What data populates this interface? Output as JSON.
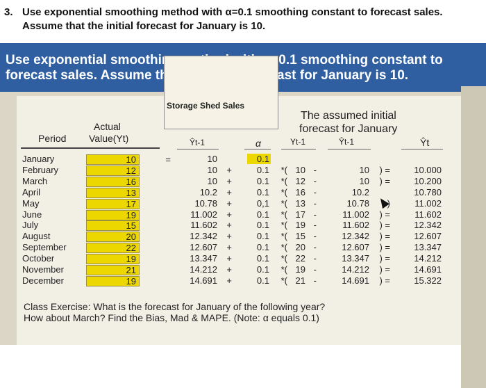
{
  "question": {
    "number": "3.",
    "text": "Use exponential smoothing method with α=0.1 smoothing constant to forecast sales. Assume that the initial forecast for January is 10."
  },
  "banner": {
    "text": "Use exponential smoothing method with α=0.1 smoothing constant to forecast sales. Assume that the initial forecast for January is 10."
  },
  "table": {
    "box_title": "Storage Shed Sales",
    "note_line1": "The assumed initial",
    "note_line2": "forecast for January",
    "header_period": "Period",
    "header_actual1": "Actual",
    "header_actual2": "Value(Yt)",
    "header_fprev": "Ŷt-1",
    "header_alpha": "α",
    "header_yprev": "Yt-1",
    "header_fprev2": "Ŷt-1",
    "header_forecast": "Ŷt",
    "rows": [
      {
        "month": "January",
        "y": "10",
        "f1": "10",
        "op1": "",
        "a": "0.1",
        "op2": "",
        "yp": "",
        "op3": "",
        "fp": "",
        "eq": "",
        "ft": ""
      },
      {
        "month": "February",
        "y": "12",
        "f1": "10",
        "op1": "+",
        "a": "0.1",
        "op2": "*(",
        "yp": "10",
        "op3": "-",
        "fp": "10",
        "eq": ") =",
        "ft": "10.000"
      },
      {
        "month": "March",
        "y": "16",
        "f1": "10",
        "op1": "+",
        "a": "0.1",
        "op2": "*(",
        "yp": "12",
        "op3": "-",
        "fp": "10",
        "eq": ") =",
        "ft": "10.200"
      },
      {
        "month": "April",
        "y": "13",
        "f1": "10.2",
        "op1": "+",
        "a": "0.1",
        "op2": "*(",
        "yp": "16",
        "op3": "-",
        "fp": "10.2",
        "eq": "",
        "ft": "10.780"
      },
      {
        "month": "May",
        "y": "17",
        "f1": "10.78",
        "op1": "+",
        "a": "0,1",
        "op2": "*(",
        "yp": "13",
        "op3": "-",
        "fp": "10.78",
        "eq": ")",
        "ft": "11.002"
      },
      {
        "month": "June",
        "y": "19",
        "f1": "11.002",
        "op1": "+",
        "a": "0.1",
        "op2": "*(",
        "yp": "17",
        "op3": "-",
        "fp": "11.002",
        "eq": ") =",
        "ft": "11.602"
      },
      {
        "month": "July",
        "y": "15",
        "f1": "11.602",
        "op1": "+",
        "a": "0.1",
        "op2": "*(",
        "yp": "19",
        "op3": "-",
        "fp": "11.602",
        "eq": ") =",
        "ft": "12.342"
      },
      {
        "month": "August",
        "y": "20",
        "f1": "12.342",
        "op1": "+",
        "a": "0.1",
        "op2": "*(",
        "yp": "15",
        "op3": "-",
        "fp": "12.342",
        "eq": ") =",
        "ft": "12.607"
      },
      {
        "month": "September",
        "y": "22",
        "f1": "12.607",
        "op1": "+",
        "a": "0.1",
        "op2": "*(",
        "yp": "20",
        "op3": "-",
        "fp": "12.607",
        "eq": ") =",
        "ft": "13.347"
      },
      {
        "month": "October",
        "y": "19",
        "f1": "13.347",
        "op1": "+",
        "a": "0.1",
        "op2": "*(",
        "yp": "22",
        "op3": "-",
        "fp": "13.347",
        "eq": ") =",
        "ft": "14.212"
      },
      {
        "month": "November",
        "y": "21",
        "f1": "14.212",
        "op1": "+",
        "a": "0.1",
        "op2": "*(",
        "yp": "19",
        "op3": "-",
        "fp": "14.212",
        "eq": ") =",
        "ft": "14.691"
      },
      {
        "month": "December",
        "y": "19",
        "f1": "14.691",
        "op1": "+",
        "a": "0.1",
        "op2": "*(",
        "yp": "21",
        "op3": "-",
        "fp": "14.691",
        "eq": ") =",
        "ft": "15.322"
      }
    ]
  },
  "exercise": {
    "line1": "Class Exercise: What is the forecast for January of the following year?",
    "line2": "How about March? Find the Bias, Mad & MAPE. (Note: α equals 0.1)"
  },
  "colors": {
    "banner": "#2f5fa0",
    "cell_highlight": "#ecd800",
    "paper": "#f2efe5"
  }
}
